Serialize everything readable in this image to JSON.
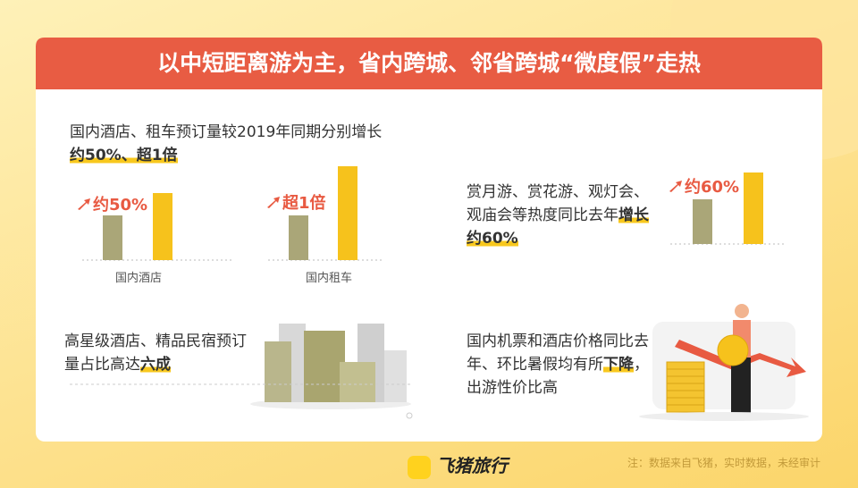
{
  "header": {
    "title": "以中短距离游为主，省内跨城、邻省跨城“微度假”走热"
  },
  "sections": [
    {
      "text": "国内酒店、租车预订量较2019年同期分别增长",
      "highlight": "约50%、超1倍"
    },
    {
      "text": "赏月游、赏花游、观灯会、观庙会等热度同比去年",
      "highlight": "增长约60%"
    },
    {
      "text": "高星级酒店、精品民宿预订量占比高达",
      "highlight": "六成"
    },
    {
      "text": "国内机票和酒店价格同比去年、环比暑假均有所",
      "highlight": "下降",
      "text_after": "，出游性价比高"
    }
  ],
  "charts": [
    {
      "change": "约50%",
      "label": "国内酒店",
      "values": [
        100,
        150
      ]
    },
    {
      "change": "超1倍",
      "label": "国内租车",
      "values": [
        100,
        210
      ]
    },
    {
      "change": "约60%",
      "values": [
        100,
        160
      ]
    }
  ],
  "bar_colors": [
    "#aaa678",
    "#f6c21c"
  ],
  "footer": {
    "logo": "飞猪旅行",
    "note": "注：数据来自飞猪，实时数据，未经审计"
  }
}
